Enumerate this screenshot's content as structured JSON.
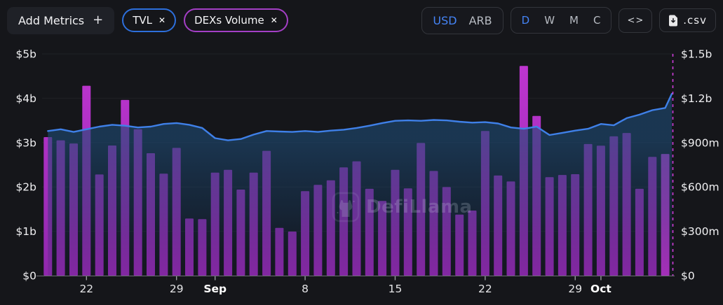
{
  "header": {
    "add_metrics_label": "Add Metrics",
    "add_metrics_plus": "+",
    "metric_pills": [
      {
        "label": "TVL",
        "close": "✕",
        "accent": "#2d6fdc"
      },
      {
        "label": "DEXs Volume",
        "close": "✕",
        "accent": "#a43fc6"
      }
    ],
    "currency_toggle": {
      "options": [
        "USD",
        "ARB"
      ],
      "active": "USD"
    },
    "interval_toggle": {
      "options": [
        "D",
        "W",
        "M",
        "C"
      ],
      "active": "D"
    },
    "embed_icon": "<>",
    "csv_label": ".csv"
  },
  "watermark": "DefiLlama",
  "chart_data": {
    "type": "combo-bar-line",
    "title": "",
    "left_axis": {
      "ticks": [
        "$5b",
        "$4b",
        "$3b",
        "$2b",
        "$1b",
        "$0"
      ],
      "range_billions": [
        0,
        5
      ]
    },
    "right_axis": {
      "ticks": [
        "$1.5b",
        "$1.2b",
        "$900m",
        "$600m",
        "$300m",
        "$0"
      ],
      "range_millions": [
        0,
        1500
      ]
    },
    "x_ticks": [
      {
        "label": "22",
        "index": 3,
        "month": false
      },
      {
        "label": "29",
        "index": 10,
        "month": false
      },
      {
        "label": "Sep",
        "index": 13,
        "month": true
      },
      {
        "label": "8",
        "index": 20,
        "month": false
      },
      {
        "label": "15",
        "index": 27,
        "month": false
      },
      {
        "label": "22",
        "index": 34,
        "month": false
      },
      {
        "label": "29",
        "index": 41,
        "month": false
      },
      {
        "label": "Oct",
        "index": 43,
        "month": true
      }
    ],
    "grid": "horizontal-faint",
    "legend_position": "none",
    "series": [
      {
        "name": "TVL",
        "type": "area-line",
        "axis": "left",
        "unit": "$b",
        "color": "#3f80e8",
        "values": [
          3.26,
          3.3,
          3.24,
          3.3,
          3.36,
          3.4,
          3.38,
          3.34,
          3.36,
          3.42,
          3.44,
          3.4,
          3.33,
          3.1,
          3.05,
          3.08,
          3.18,
          3.26,
          3.25,
          3.24,
          3.26,
          3.24,
          3.27,
          3.29,
          3.33,
          3.38,
          3.44,
          3.49,
          3.5,
          3.49,
          3.51,
          3.5,
          3.47,
          3.45,
          3.46,
          3.43,
          3.34,
          3.31,
          3.36,
          3.17,
          3.22,
          3.27,
          3.31,
          3.42,
          3.39,
          3.55,
          3.63,
          3.73,
          3.78
        ],
        "end_spike_value": 4.1
      },
      {
        "name": "DEXs Volume",
        "type": "bar",
        "axis": "right",
        "unit": "$m",
        "color_top": "#c136d2",
        "color_bottom": "#8f28ad",
        "current_bar_color": "#d83be4",
        "values": [
          937,
          915,
          894,
          1284,
          684,
          880,
          1188,
          990,
          828,
          690,
          864,
          386,
          382,
          697,
          716,
          582,
          697,
          844,
          323,
          298,
          571,
          614,
          645,
          732,
          773,
          587,
          505,
          716,
          590,
          897,
          708,
          599,
          413,
          440,
          978,
          677,
          637,
          1418,
          1080,
          666,
          681,
          686,
          890,
          879,
          942,
          965,
          587,
          803,
          823
        ]
      }
    ],
    "current_day_marker": {
      "style": "dashed",
      "color": "#cf3ddb"
    }
  }
}
